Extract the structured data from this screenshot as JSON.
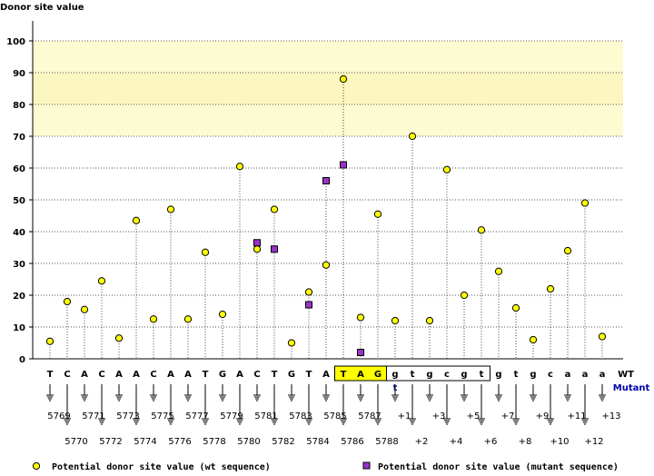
{
  "chart_data": {
    "type": "scatter",
    "ylabel": "Donor site value",
    "ylim": [
      0,
      100
    ],
    "yticks": [
      0,
      10,
      20,
      30,
      40,
      50,
      60,
      70,
      80,
      90,
      100
    ],
    "grid": true,
    "threshold_band": [
      70,
      100
    ],
    "row_labels": {
      "wt": "WT",
      "mutant": "Mutant"
    },
    "wt_sequence": [
      "T",
      "C",
      "A",
      "C",
      "A",
      "A",
      "C",
      "A",
      "A",
      "T",
      "G",
      "A",
      "C",
      "T",
      "G",
      "T",
      "A",
      "T",
      "A",
      "G",
      "g",
      "t",
      "g",
      "c",
      "g",
      "t",
      "g",
      "t",
      "g",
      "c",
      "a",
      "a",
      "a"
    ],
    "mutant_sequence": [
      "",
      "",
      "",
      "",
      "",
      "",
      "",
      "",
      "",
      "",
      "",
      "",
      "",
      "",
      "",
      "",
      "",
      "",
      "",
      "",
      "t",
      "",
      "",
      "",
      "",
      "",
      "",
      "",
      "",
      "",
      "",
      "",
      ""
    ],
    "positions": [
      "5769",
      "5770",
      "5771",
      "5772",
      "5773",
      "5774",
      "5775",
      "5776",
      "5777",
      "5778",
      "5779",
      "5780",
      "5781",
      "5782",
      "5783",
      "5784",
      "5785",
      "5786",
      "5787",
      "5788",
      "+1",
      "+2",
      "+3",
      "+4",
      "+5",
      "+6",
      "+7",
      "+8",
      "+9",
      "+10",
      "+11",
      "+12",
      "+13"
    ],
    "highlight": {
      "exon_end": [
        17,
        19
      ],
      "intron_start": [
        20,
        25
      ]
    },
    "series": [
      {
        "name": "Potential donor site value (wt sequence)",
        "color": "#ffff00",
        "marker": "circle",
        "values": [
          5.5,
          18,
          15.5,
          24.5,
          6.5,
          43.5,
          12.5,
          47,
          12.5,
          33.5,
          14,
          60.5,
          34.5,
          47,
          5,
          21,
          29.5,
          88,
          13,
          45.5,
          12,
          70,
          12,
          59.5,
          20,
          40.5,
          27.5,
          16,
          6,
          22,
          34,
          49,
          7
        ]
      },
      {
        "name": "Potential donor site value (mutant sequence)",
        "color": "#9933cc",
        "marker": "square",
        "values": [
          null,
          null,
          null,
          null,
          null,
          null,
          null,
          null,
          null,
          null,
          null,
          null,
          36.5,
          34.5,
          null,
          17,
          56,
          61,
          2,
          null,
          null,
          null,
          null,
          null,
          null,
          null,
          null,
          null,
          null,
          null,
          null,
          null,
          null
        ]
      }
    ]
  }
}
